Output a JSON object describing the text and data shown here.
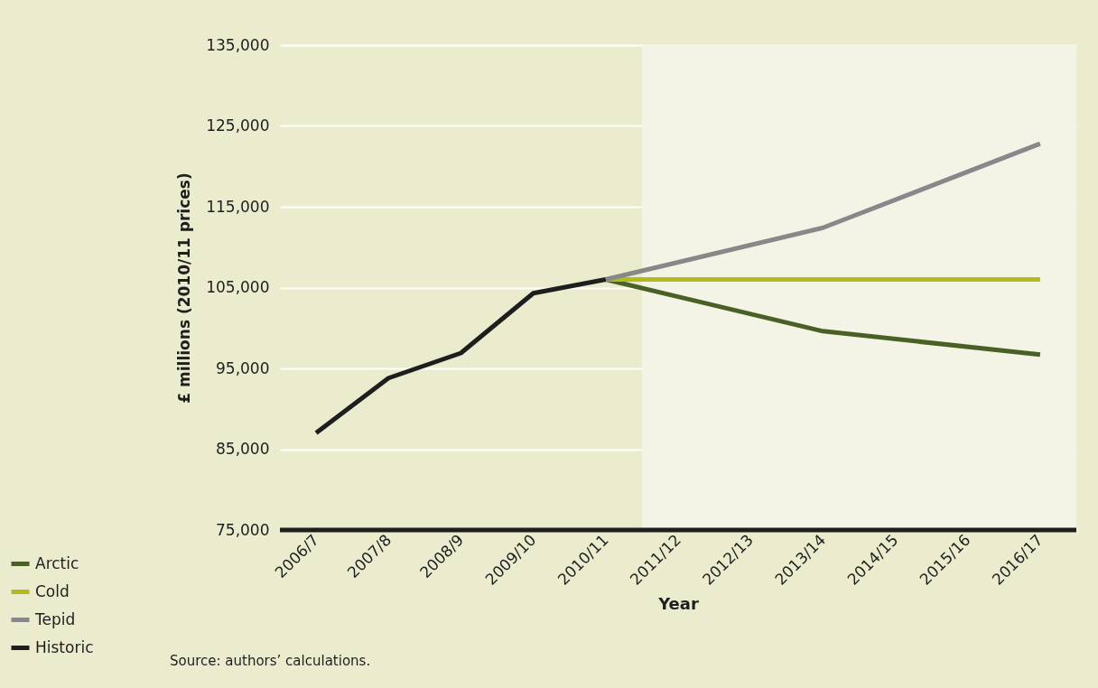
{
  "chart_data": {
    "type": "line",
    "xlabel": "Year",
    "ylabel": "£ millions (2010/11 prices)",
    "categories": [
      "2006/7",
      "2007/8",
      "2008/9",
      "2009/10",
      "2010/11",
      "2011/12",
      "2012/13",
      "2013/14",
      "2014/15",
      "2015/16",
      "2016/17"
    ],
    "series": [
      {
        "name": "Arctic",
        "color": "#4a6126",
        "x": [
          "2010/11",
          "2013/14",
          "2016/17"
        ],
        "values": [
          106000,
          99600,
          96700
        ]
      },
      {
        "name": "Cold",
        "color": "#b2bb1e",
        "x": [
          "2010/11",
          "2013/14",
          "2016/17"
        ],
        "values": [
          106000,
          106000,
          106000
        ]
      },
      {
        "name": "Tepid",
        "color": "#88888a",
        "x": [
          "2010/11",
          "2013/14",
          "2016/17"
        ],
        "values": [
          106000,
          112400,
          122800
        ]
      },
      {
        "name": "Historic",
        "color": "#1e1e1e",
        "x": [
          "2006/7",
          "2007/8",
          "2008/9",
          "2009/10",
          "2010/11"
        ],
        "values": [
          87000,
          93800,
          96900,
          104300,
          106000
        ]
      }
    ],
    "ylim": [
      75000,
      135000
    ],
    "yticks": [
      {
        "value": 75000,
        "label": "75,000"
      },
      {
        "value": 85000,
        "label": "85,000"
      },
      {
        "value": 95000,
        "label": "95,000"
      },
      {
        "value": 105000,
        "label": "105,000"
      },
      {
        "value": 115000,
        "label": "115,000"
      },
      {
        "value": 125000,
        "label": "125,000"
      },
      {
        "value": 135000,
        "label": "135,000"
      }
    ],
    "ref_lines": [
      {
        "axis": "y",
        "value": 75000,
        "color": "#1e1e1e"
      }
    ],
    "bands": [
      {
        "axis": "x",
        "from": "2010/11",
        "to": "2016/17",
        "color": "#f4f4e6"
      }
    ],
    "grid": "y",
    "legend": "bottom left",
    "annotations": [
      "Source: authors’ calculations."
    ]
  }
}
